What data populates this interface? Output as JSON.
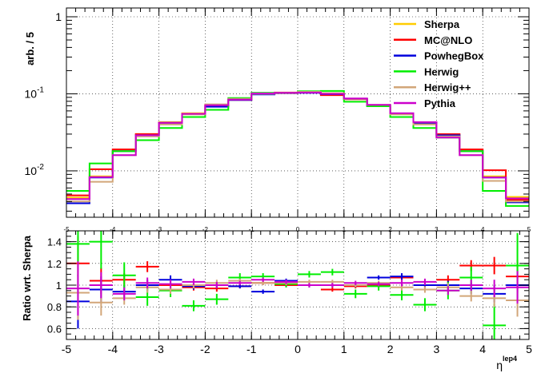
{
  "chart_data": [
    {
      "type": "line",
      "panel": "main",
      "ylabel": "arb. / 5",
      "yscale": "log",
      "ylim": [
        0.0025,
        1.3
      ],
      "xlim": [
        -5,
        5
      ],
      "y_ticks": [
        "10",
        "10",
        "1"
      ],
      "y_tick_exps": [
        "-2",
        "-1",
        ""
      ],
      "x_ticks": [
        "-5",
        "-4",
        "-3",
        "-2",
        "-1",
        "0",
        "1",
        "2",
        "3",
        "4",
        "5"
      ],
      "legend_position": "top-right",
      "grid": true,
      "bin_edges": [
        -5,
        -4.5,
        -4,
        -3.5,
        -3,
        -2.5,
        -2,
        -1.5,
        -1,
        -0.5,
        0,
        0.5,
        1,
        1.5,
        2,
        2.5,
        3,
        3.5,
        4,
        4.5,
        5
      ],
      "series": [
        {
          "name": "Sherpa",
          "color": "#ffcc00",
          "values": [
            0.0045,
            0.0085,
            0.018,
            0.03,
            0.043,
            0.056,
            0.071,
            0.083,
            0.099,
            0.102,
            0.104,
            0.1,
            0.086,
            0.071,
            0.055,
            0.042,
            0.029,
            0.018,
            0.0085,
            0.0046
          ]
        },
        {
          "name": "MC@NLO",
          "color": "#ff0000",
          "values": [
            0.0048,
            0.0105,
            0.019,
            0.03,
            0.042,
            0.055,
            0.07,
            0.084,
            0.101,
            0.104,
            0.104,
            0.096,
            0.085,
            0.071,
            0.055,
            0.042,
            0.03,
            0.019,
            0.0102,
            0.0042
          ]
        },
        {
          "name": "PowhegBox",
          "color": "#0000dd",
          "values": [
            0.0038,
            0.0082,
            0.018,
            0.029,
            0.042,
            0.055,
            0.068,
            0.083,
            0.098,
            0.102,
            0.103,
            0.099,
            0.086,
            0.07,
            0.055,
            0.042,
            0.029,
            0.018,
            0.0082,
            0.0039
          ]
        },
        {
          "name": "Herwig",
          "color": "#00ee00",
          "values": [
            0.0055,
            0.0125,
            0.018,
            0.025,
            0.036,
            0.05,
            0.062,
            0.088,
            0.103,
            0.103,
            0.108,
            0.109,
            0.079,
            0.069,
            0.05,
            0.036,
            0.027,
            0.018,
            0.0055,
            0.0035
          ]
        },
        {
          "name": "Herwig++",
          "color": "#d2a679",
          "values": [
            0.004,
            0.0072,
            0.016,
            0.028,
            0.04,
            0.054,
            0.073,
            0.086,
            0.1,
            0.103,
            0.106,
            0.102,
            0.086,
            0.072,
            0.054,
            0.04,
            0.028,
            0.016,
            0.0074,
            0.004
          ]
        },
        {
          "name": "Pythia",
          "color": "#cc00cc",
          "values": [
            0.0043,
            0.0083,
            0.016,
            0.029,
            0.042,
            0.055,
            0.071,
            0.084,
            0.101,
            0.103,
            0.104,
            0.1,
            0.087,
            0.072,
            0.056,
            0.043,
            0.027,
            0.016,
            0.0082,
            0.0044
          ]
        }
      ]
    },
    {
      "type": "line",
      "panel": "ratio",
      "ylabel": "Ratio wrt. Sherpa",
      "xlabel": "η",
      "xlabel_sup": "lep4",
      "ylim": [
        0.5,
        1.5
      ],
      "xlim": [
        -5,
        5
      ],
      "y_ticks": [
        "0.6",
        "0.8",
        "1",
        "1.2",
        "1.4"
      ],
      "y_tick_values": [
        0.6,
        0.8,
        1.0,
        1.2,
        1.4
      ],
      "x_ticks": [
        "-5",
        "-4",
        "-3",
        "-2",
        "-1",
        "0",
        "1",
        "2",
        "3",
        "4",
        "5"
      ],
      "grid": true,
      "bin_edges": [
        -5,
        -4.5,
        -4,
        -3.5,
        -3,
        -2.5,
        -2,
        -1.5,
        -1,
        -0.5,
        0,
        0.5,
        1,
        1.5,
        2,
        2.5,
        3,
        3.5,
        4,
        4.5,
        5
      ],
      "series": [
        {
          "name": "MC@NLO",
          "color": "#ff0000",
          "values": [
            1.2,
            1.04,
            1.05,
            1.17,
            1.0,
            0.98,
            0.97,
            0.99,
            1.02,
            1.0,
            1.0,
            0.96,
            0.99,
            1.0,
            1.07,
            1.0,
            1.05,
            1.18,
            1.18,
            1.08
          ],
          "errors": [
            0.25,
            0.12,
            0.06,
            0.05,
            0.04,
            0.03,
            0.03,
            0.02,
            0.02,
            0.02,
            0.02,
            0.02,
            0.02,
            0.02,
            0.03,
            0.03,
            0.04,
            0.05,
            0.08,
            0.15
          ]
        },
        {
          "name": "PowhegBox",
          "color": "#0000dd",
          "values": [
            0.85,
            0.96,
            0.94,
            1.0,
            1.05,
            0.99,
            1.0,
            0.99,
            0.94,
            1.04,
            1.0,
            1.0,
            1.0,
            1.07,
            1.08,
            1.0,
            1.0,
            0.97,
            0.92,
            1.0
          ],
          "errors": [
            0.25,
            0.12,
            0.06,
            0.05,
            0.04,
            0.03,
            0.03,
            0.02,
            0.02,
            0.02,
            0.02,
            0.02,
            0.02,
            0.02,
            0.03,
            0.03,
            0.04,
            0.05,
            0.08,
            0.15
          ]
        },
        {
          "name": "Herwig",
          "color": "#00ee00",
          "values": [
            1.38,
            1.4,
            1.09,
            0.89,
            0.95,
            0.81,
            0.87,
            1.07,
            1.08,
            1.01,
            1.1,
            1.12,
            0.92,
            0.99,
            0.91,
            0.82,
            0.95,
            1.07,
            0.63,
            1.18
          ],
          "errors": [
            0.3,
            0.25,
            0.12,
            0.08,
            0.06,
            0.05,
            0.05,
            0.04,
            0.03,
            0.03,
            0.03,
            0.03,
            0.04,
            0.04,
            0.05,
            0.06,
            0.08,
            0.1,
            0.2,
            0.3
          ]
        },
        {
          "name": "Herwig++",
          "color": "#d2a679",
          "values": [
            0.93,
            0.84,
            0.88,
            0.98,
            0.96,
            1.0,
            1.02,
            1.04,
            1.02,
            1.02,
            1.03,
            1.03,
            1.0,
            1.02,
            0.98,
            0.96,
            0.98,
            0.9,
            0.88,
            0.86
          ],
          "errors": [
            0.25,
            0.12,
            0.06,
            0.05,
            0.04,
            0.03,
            0.03,
            0.02,
            0.02,
            0.02,
            0.02,
            0.02,
            0.02,
            0.02,
            0.03,
            0.03,
            0.04,
            0.05,
            0.08,
            0.15
          ]
        },
        {
          "name": "Pythia",
          "color": "#cc00cc",
          "values": [
            0.97,
            1.0,
            0.92,
            1.02,
            1.01,
            1.03,
            1.0,
            1.02,
            1.05,
            1.03,
            1.0,
            1.0,
            1.02,
            1.01,
            1.02,
            1.03,
            0.95,
            1.0,
            0.97,
            0.98
          ],
          "errors": [
            0.25,
            0.12,
            0.06,
            0.05,
            0.04,
            0.03,
            0.03,
            0.02,
            0.02,
            0.02,
            0.02,
            0.02,
            0.02,
            0.02,
            0.03,
            0.03,
            0.04,
            0.05,
            0.08,
            0.15
          ]
        }
      ]
    }
  ]
}
